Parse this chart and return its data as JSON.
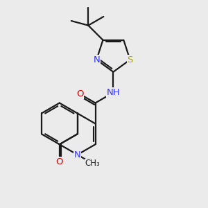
{
  "background_color": "#ebebeb",
  "bond_color": "#1a1a1a",
  "bond_width": 1.6,
  "atom_colors": {
    "C": "#1a1a1a",
    "N": "#3333ff",
    "O": "#dd0000",
    "S": "#aaaa00",
    "H": "#1a1a1a"
  },
  "font_size": 9.5,
  "font_size_small": 8.5
}
